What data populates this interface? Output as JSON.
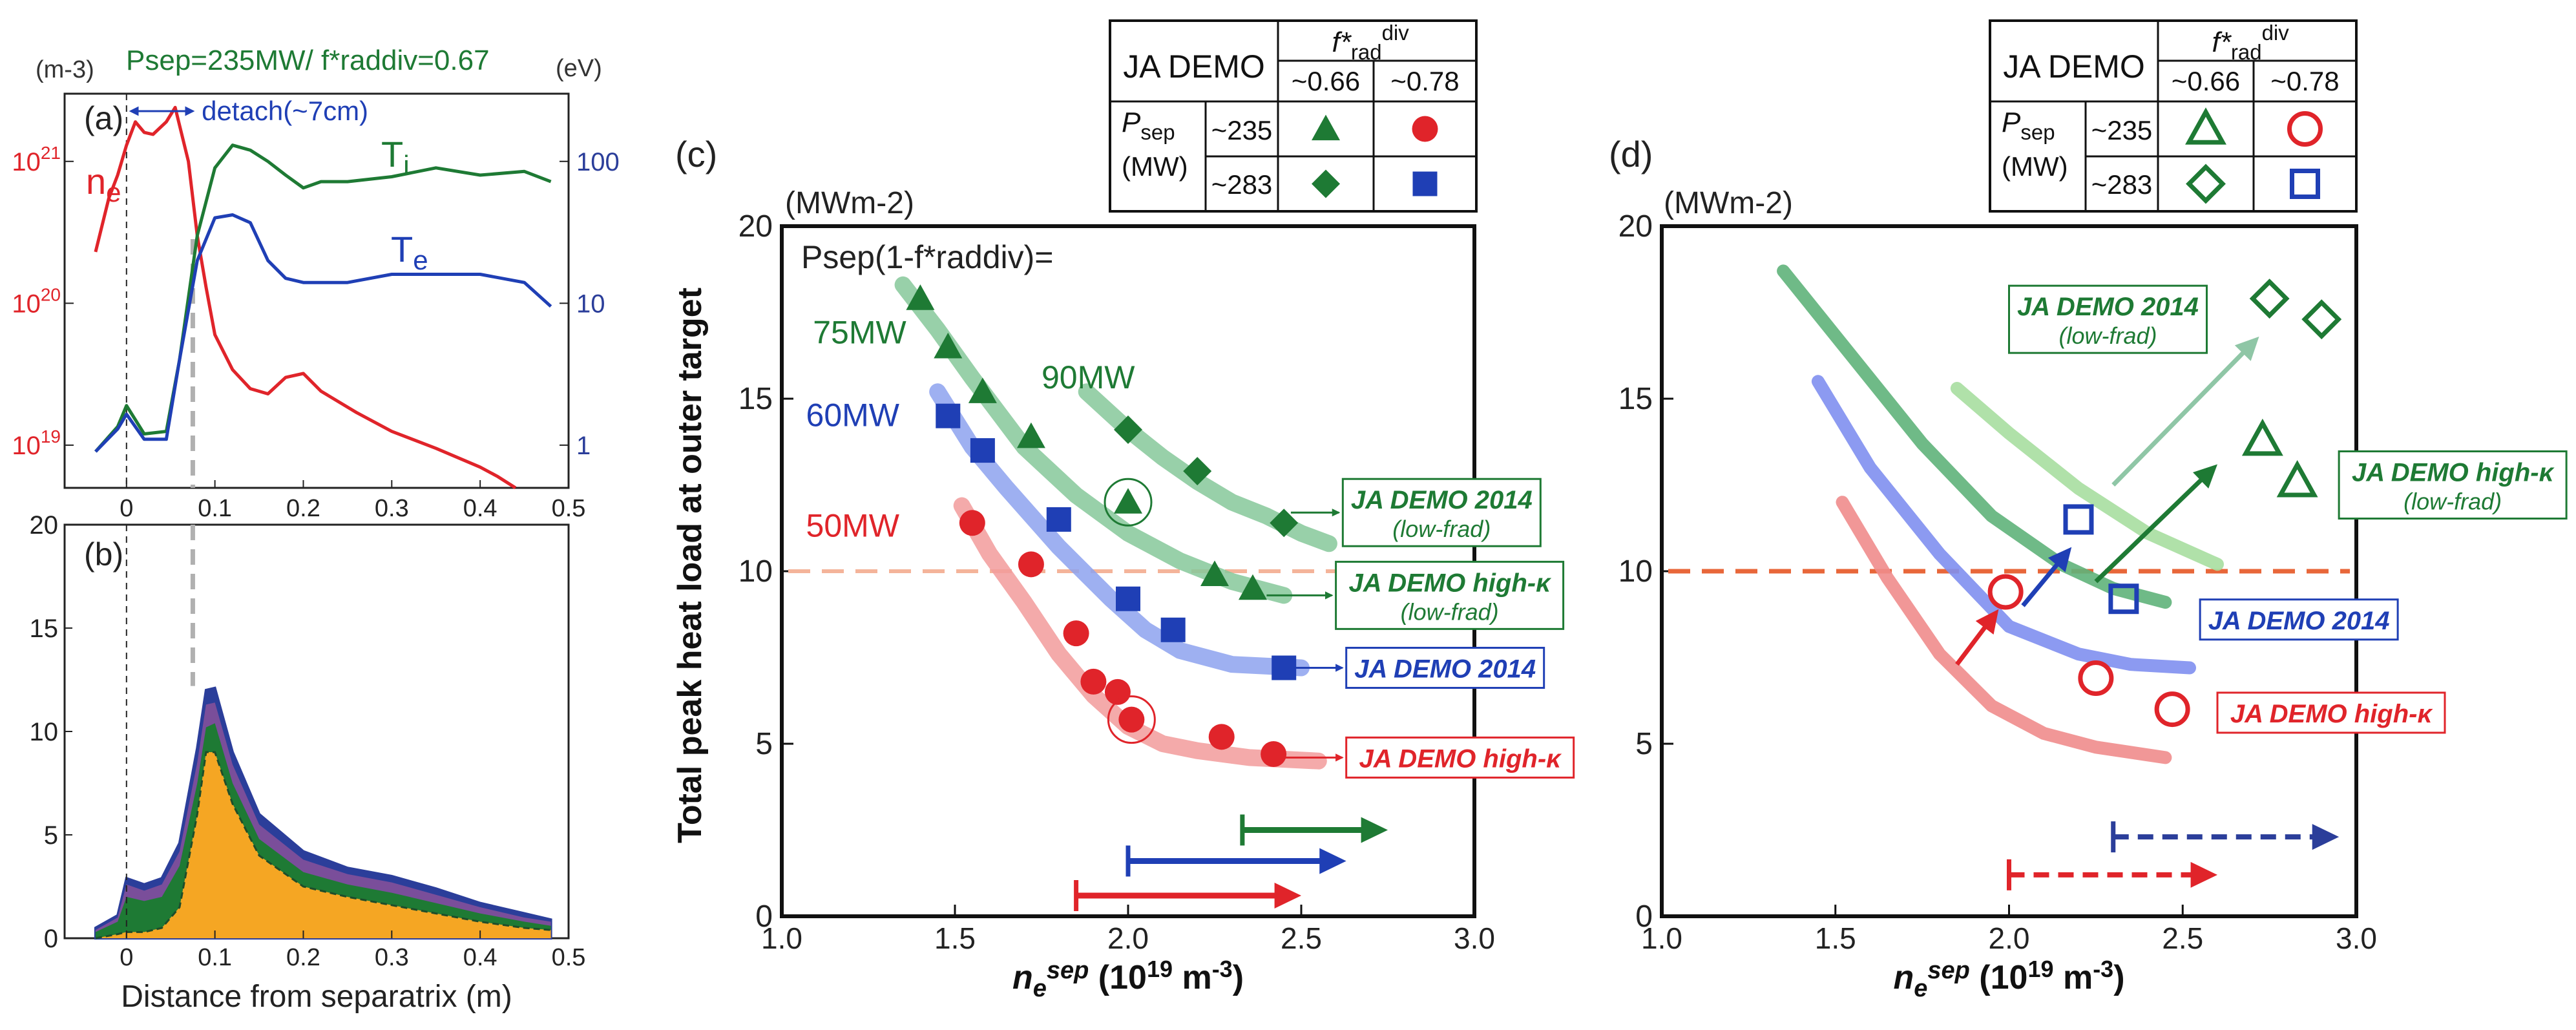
{
  "figure": {
    "panel_a_header": {
      "left_unit": "(m-3)",
      "right_unit": "(eV)",
      "condition": "Psep=235MW/ f*raddiv=0.67"
    },
    "x_axis_label_ab": "Distance from separatrix (m)",
    "panel_c_header": {
      "unit": "(MWm-2)",
      "equation": "Psep(1-f*raddiv)="
    },
    "panel_d_header": {
      "unit": "(MWm-2)"
    }
  },
  "legend_tables": [
    {
      "id": "c",
      "title": "JA DEMO",
      "col_header": "f*raddiv",
      "cols": [
        "~0.66",
        "~0.78"
      ],
      "row_label_1": "Psep",
      "row_label_2": "(MW)",
      "rows": [
        "~235",
        "~283"
      ],
      "style": "filled"
    },
    {
      "id": "d",
      "title": "JA DEMO",
      "col_header": "f*raddiv",
      "cols": [
        "~0.66",
        "~0.78"
      ],
      "row_label_1": "Psep",
      "row_label_2": "(MW)",
      "rows": [
        "~235",
        "~283"
      ],
      "style": "open"
    }
  ],
  "colors": {
    "green": "#1e7a34",
    "blue": "#1f3fb5",
    "red": "#e0242a",
    "navy": "#2b3e9a",
    "light_green": "#86c89a",
    "light_blue": "#8da2ef",
    "light_red": "#f29b9b",
    "orange_fill": "#f5a623",
    "dashed_orange": "#e8673a",
    "gray_dash": "#b0b0b0"
  },
  "chart_data": [
    {
      "id": "a",
      "panel_label": "(a)",
      "type": "line",
      "title": "",
      "xlim": [
        -0.07,
        0.5
      ],
      "x_ticks": [
        "0",
        "0.1",
        "0.2",
        "0.3",
        "0.4",
        "0.5"
      ],
      "y_left_scale": "log",
      "y_left_lim": [
        5e+18,
        3e+21
      ],
      "y_left_ticks": [
        "10^19",
        "10^20",
        "10^21"
      ],
      "y_right_scale": "log",
      "y_right_lim": [
        0.5,
        300
      ],
      "y_right_ticks": [
        "1",
        "10",
        "100"
      ],
      "annotation": "detach(~7cm)",
      "series": [
        {
          "name": "ne",
          "sub": "e",
          "axis": "left",
          "color": "red",
          "x": [
            -0.035,
            -0.02,
            -0.01,
            0.0,
            0.01,
            0.02,
            0.03,
            0.045,
            0.055,
            0.07,
            0.08,
            0.09,
            0.1,
            0.12,
            0.14,
            0.16,
            0.18,
            0.2,
            0.22,
            0.26,
            0.3,
            0.35,
            0.4,
            0.42,
            0.44
          ],
          "y": [
            2.3e+20,
            5.5e+20,
            8e+20,
            1.3e+21,
            1.9e+21,
            1.6e+21,
            1.55e+21,
            1.9e+21,
            2.4e+21,
            1e+21,
            3e+20,
            1.3e+20,
            6e+19,
            3.4e+19,
            2.5e+19,
            2.3e+19,
            3e+19,
            3.2e+19,
            2.4e+19,
            1.7e+19,
            1.25e+19,
            9.5e+18,
            7e+18,
            6e+18,
            5e+18
          ]
        },
        {
          "name": "Ti",
          "sub": "i",
          "axis": "right",
          "color": "green",
          "x": [
            -0.035,
            -0.01,
            0.0,
            0.02,
            0.045,
            0.06,
            0.08,
            0.1,
            0.12,
            0.14,
            0.16,
            0.18,
            0.2,
            0.22,
            0.25,
            0.3,
            0.35,
            0.4,
            0.45,
            0.48
          ],
          "y": [
            0.9,
            1.35,
            1.9,
            1.2,
            1.25,
            4.0,
            30.0,
            90.0,
            130.0,
            120.0,
            100.0,
            80.0,
            65.0,
            72.0,
            72.0,
            78.0,
            90.0,
            80.0,
            85.0,
            72.0
          ]
        },
        {
          "name": "Te",
          "sub": "e",
          "axis": "right",
          "color": "blue",
          "x": [
            -0.035,
            -0.01,
            0.0,
            0.02,
            0.045,
            0.06,
            0.08,
            0.1,
            0.12,
            0.14,
            0.16,
            0.18,
            0.2,
            0.25,
            0.3,
            0.35,
            0.4,
            0.45,
            0.48
          ],
          "y": [
            0.9,
            1.3,
            1.65,
            1.1,
            1.1,
            4.0,
            20.0,
            40.0,
            42.0,
            37.0,
            20.0,
            15.0,
            14.0,
            14.0,
            16.0,
            16.0,
            16.0,
            14.0,
            9.5
          ]
        }
      ]
    },
    {
      "id": "b",
      "panel_label": "(b)",
      "type": "area",
      "xlim": [
        -0.07,
        0.5
      ],
      "ylim": [
        0,
        20
      ],
      "x_ticks": [
        "0",
        "0.1",
        "0.2",
        "0.3",
        "0.4",
        "0.5"
      ],
      "y_ticks": [
        "0",
        "5",
        "10",
        "15",
        "20"
      ],
      "series": [
        {
          "name": "layer_orange",
          "color": "orange_fill",
          "x": [
            -0.035,
            -0.01,
            0.0,
            0.02,
            0.04,
            0.06,
            0.08,
            0.09,
            0.1,
            0.12,
            0.15,
            0.2,
            0.25,
            0.3,
            0.35,
            0.4,
            0.45,
            0.48
          ],
          "y": [
            0.0,
            0.2,
            0.3,
            0.3,
            0.5,
            1.5,
            6.0,
            9.0,
            9.0,
            6.5,
            4.0,
            2.5,
            2.0,
            1.6,
            1.2,
            0.8,
            0.5,
            0.4
          ]
        },
        {
          "name": "layer_green",
          "color": "green",
          "x": [
            -0.035,
            -0.01,
            0.0,
            0.02,
            0.04,
            0.06,
            0.08,
            0.09,
            0.1,
            0.12,
            0.15,
            0.2,
            0.25,
            0.3,
            0.35,
            0.4,
            0.45,
            0.48
          ],
          "y": [
            0.3,
            0.8,
            2.0,
            1.8,
            2.0,
            3.5,
            7.5,
            10.2,
            10.4,
            7.5,
            4.8,
            3.2,
            2.6,
            2.2,
            1.7,
            1.2,
            0.8,
            0.6
          ]
        },
        {
          "name": "layer_purple",
          "color": "#7a4e9a",
          "x": [
            -0.035,
            -0.01,
            0.0,
            0.02,
            0.04,
            0.06,
            0.08,
            0.09,
            0.1,
            0.12,
            0.15,
            0.2,
            0.25,
            0.3,
            0.35,
            0.4,
            0.45,
            0.48
          ],
          "y": [
            0.4,
            1.0,
            2.6,
            2.3,
            2.6,
            4.2,
            8.5,
            11.3,
            11.4,
            8.4,
            5.5,
            3.8,
            3.1,
            2.7,
            2.1,
            1.5,
            1.0,
            0.8
          ]
        },
        {
          "name": "layer_blue",
          "color": "navy",
          "x": [
            -0.035,
            -0.01,
            0.0,
            0.02,
            0.04,
            0.06,
            0.08,
            0.09,
            0.1,
            0.12,
            0.15,
            0.2,
            0.25,
            0.3,
            0.35,
            0.4,
            0.45,
            0.48
          ],
          "y": [
            0.5,
            1.1,
            2.9,
            2.6,
            2.9,
            4.6,
            9.2,
            12.0,
            12.1,
            9.0,
            6.0,
            4.2,
            3.4,
            3.0,
            2.4,
            1.7,
            1.2,
            0.9
          ]
        }
      ]
    },
    {
      "id": "c",
      "panel_label": "(c)",
      "type": "scatter",
      "xlabel": "ne sep (10^19 m-3)",
      "ylabel": "Total peak heat load at outer target",
      "xlim": [
        1.0,
        3.0
      ],
      "ylim": [
        0,
        20
      ],
      "x_ticks": [
        "1.0",
        "1.5",
        "2.0",
        "2.5",
        "3.0"
      ],
      "y_ticks": [
        "0",
        "5",
        "10",
        "15",
        "20"
      ],
      "threshold_y": 10,
      "curves": [
        {
          "name": "75MW",
          "color": "light_green",
          "x": [
            1.35,
            1.45,
            1.55,
            1.7,
            1.85,
            2.0,
            2.15,
            2.3,
            2.45
          ],
          "y": [
            18.3,
            17.0,
            15.6,
            13.6,
            12.2,
            11.1,
            10.3,
            9.7,
            9.3
          ]
        },
        {
          "name": "90MW",
          "color": "light_green",
          "x": [
            1.88,
            2.0,
            2.1,
            2.2,
            2.3,
            2.4,
            2.5,
            2.58
          ],
          "y": [
            15.2,
            14.1,
            13.3,
            12.6,
            12.0,
            11.6,
            11.1,
            10.8
          ]
        },
        {
          "name": "60MW",
          "color": "light_blue",
          "x": [
            1.45,
            1.55,
            1.65,
            1.8,
            1.95,
            2.05,
            2.15,
            2.3,
            2.5
          ],
          "y": [
            15.2,
            13.6,
            12.4,
            10.7,
            9.2,
            8.3,
            7.7,
            7.3,
            7.2
          ]
        },
        {
          "name": "50MW",
          "color": "light_red",
          "x": [
            1.52,
            1.6,
            1.7,
            1.8,
            1.9,
            2.0,
            2.1,
            2.2,
            2.35,
            2.55
          ],
          "y": [
            11.9,
            10.5,
            9.1,
            7.6,
            6.4,
            5.5,
            5.0,
            4.8,
            4.6,
            4.5
          ]
        }
      ],
      "curve_labels": [
        {
          "text": "75MW",
          "x": 1.09,
          "y": 16.6,
          "color": "green"
        },
        {
          "text": "90MW",
          "x": 1.75,
          "y": 15.3,
          "color": "green"
        },
        {
          "text": "60MW",
          "x": 1.07,
          "y": 14.2,
          "color": "blue"
        },
        {
          "text": "50MW",
          "x": 1.07,
          "y": 11.0,
          "color": "red"
        }
      ],
      "series": [
        {
          "name": "Psep~235, f~0.66",
          "marker": "triangle",
          "color": "green",
          "x": [
            1.4,
            1.48,
            1.58,
            1.72,
            2.0,
            2.25,
            2.36
          ],
          "y": [
            17.9,
            16.5,
            15.2,
            13.9,
            12.0,
            9.9,
            9.5
          ]
        },
        {
          "name": "Psep~283, f~0.66",
          "marker": "diamond",
          "color": "green",
          "x": [
            2.0,
            2.2,
            2.45
          ],
          "y": [
            14.1,
            12.9,
            11.4
          ]
        },
        {
          "name": "Psep~283, f~0.78",
          "marker": "square",
          "color": "blue",
          "x": [
            1.48,
            1.58,
            1.8,
            2.0,
            2.13,
            2.45
          ],
          "y": [
            14.5,
            13.5,
            11.5,
            9.2,
            8.3,
            7.2
          ]
        },
        {
          "name": "Psep~235, f~0.78",
          "marker": "circle",
          "color": "red",
          "x": [
            1.55,
            1.72,
            1.85,
            1.9,
            1.97,
            2.01,
            2.27,
            2.42
          ],
          "y": [
            11.4,
            10.2,
            8.2,
            6.8,
            6.5,
            5.7,
            5.2,
            4.7
          ]
        }
      ],
      "circled_points": [
        {
          "x": 2.0,
          "y": 12.0
        },
        {
          "x": 2.01,
          "y": 5.7
        }
      ],
      "boxes": [
        {
          "line1": "JA DEMO 2014",
          "line2": "(low-frad)",
          "color": "green",
          "x": 2.62,
          "y": 11.7
        },
        {
          "line1": "JA DEMO high-κ",
          "line2": "(low-frad)",
          "color": "green",
          "x": 2.6,
          "y": 9.3
        },
        {
          "line1": "JA DEMO 2014",
          "line2": "",
          "color": "blue",
          "x": 2.63,
          "y": 7.2
        },
        {
          "line1": "JA DEMO high-κ",
          "line2": "",
          "color": "red",
          "x": 2.63,
          "y": 4.6
        }
      ],
      "range_arrows": [
        {
          "color": "green",
          "x_start": 2.33,
          "x_end": 2.75,
          "y": 2.5
        },
        {
          "color": "blue",
          "x_start": 2.0,
          "x_end": 2.63,
          "y": 1.6
        },
        {
          "color": "red",
          "x_start": 1.85,
          "x_end": 2.5,
          "y": 0.6
        }
      ]
    },
    {
      "id": "d",
      "panel_label": "(d)",
      "type": "scatter",
      "xlabel": "ne sep (10^19 m-3)",
      "xlim": [
        1.0,
        3.0
      ],
      "ylim": [
        0,
        20
      ],
      "x_ticks": [
        "1.0",
        "1.5",
        "2.0",
        "2.5",
        "3.0"
      ],
      "y_ticks": [
        "0",
        "5",
        "10",
        "15",
        "20"
      ],
      "threshold_y": 10,
      "curves": [
        {
          "name": "green_thick",
          "color": "#5fb37a",
          "x": [
            1.35,
            1.55,
            1.75,
            1.95,
            2.15,
            2.3,
            2.45
          ],
          "y": [
            18.7,
            16.2,
            13.7,
            11.6,
            10.2,
            9.5,
            9.1
          ]
        },
        {
          "name": "light_green",
          "color": "#a7dea0",
          "x": [
            1.85,
            2.0,
            2.2,
            2.4,
            2.6
          ],
          "y": [
            15.3,
            14.0,
            12.4,
            11.1,
            10.2
          ]
        },
        {
          "name": "blue_curve",
          "color": "#7f8ff0",
          "x": [
            1.45,
            1.6,
            1.8,
            2.0,
            2.2,
            2.35,
            2.52
          ],
          "y": [
            15.5,
            13.0,
            10.5,
            8.4,
            7.6,
            7.3,
            7.2
          ]
        },
        {
          "name": "red_curve",
          "color": "#f08c8c",
          "x": [
            1.52,
            1.65,
            1.8,
            1.95,
            2.1,
            2.25,
            2.45
          ],
          "y": [
            12.0,
            9.8,
            7.6,
            6.1,
            5.3,
            4.9,
            4.6
          ]
        }
      ],
      "series": [
        {
          "name": "open diamonds",
          "marker": "open_diamond",
          "color": "green",
          "x": [
            2.75,
            2.9
          ],
          "y": [
            17.9,
            17.3
          ]
        },
        {
          "name": "open triangles",
          "marker": "open_triangle",
          "color": "green",
          "x": [
            2.73,
            2.83
          ],
          "y": [
            13.8,
            12.6
          ]
        },
        {
          "name": "open squares",
          "marker": "open_square",
          "color": "blue",
          "x": [
            2.2,
            2.33
          ],
          "y": [
            11.5,
            9.2
          ]
        },
        {
          "name": "open circles",
          "marker": "open_circle",
          "color": "red",
          "x": [
            1.99,
            2.25,
            2.47
          ],
          "y": [
            9.4,
            6.9,
            6.0
          ]
        }
      ],
      "arrows": [
        {
          "color": "#8fc6a6",
          "x1": 2.3,
          "y1": 12.5,
          "x2": 2.72,
          "y2": 16.8
        },
        {
          "color": "green",
          "x1": 2.25,
          "y1": 9.7,
          "x2": 2.6,
          "y2": 13.1
        },
        {
          "color": "blue",
          "x1": 2.04,
          "y1": 9.0,
          "x2": 2.18,
          "y2": 10.7
        },
        {
          "color": "red",
          "x1": 1.85,
          "y1": 7.3,
          "x2": 1.97,
          "y2": 8.9
        }
      ],
      "boxes": [
        {
          "line1": "JA DEMO 2014",
          "line2": "(low-frad)",
          "color": "green",
          "x": 2.0,
          "y": 17.3,
          "anchor": "top"
        },
        {
          "line1": "JA DEMO high-κ",
          "line2": "(low-frad)",
          "color": "green",
          "x": 2.95,
          "y": 12.5,
          "anchor": "top"
        },
        {
          "line1": "JA DEMO 2014",
          "line2": "",
          "color": "blue",
          "x": 2.55,
          "y": 8.6,
          "anchor": "top"
        },
        {
          "line1": "JA DEMO high-κ",
          "line2": "",
          "color": "red",
          "x": 2.6,
          "y": 5.9,
          "anchor": "top"
        }
      ],
      "range_arrows": [
        {
          "color": "navy",
          "x_start": 2.3,
          "x_end": 2.95,
          "y": 2.3
        },
        {
          "color": "red",
          "x_start": 2.0,
          "x_end": 2.6,
          "y": 1.2
        }
      ]
    }
  ]
}
